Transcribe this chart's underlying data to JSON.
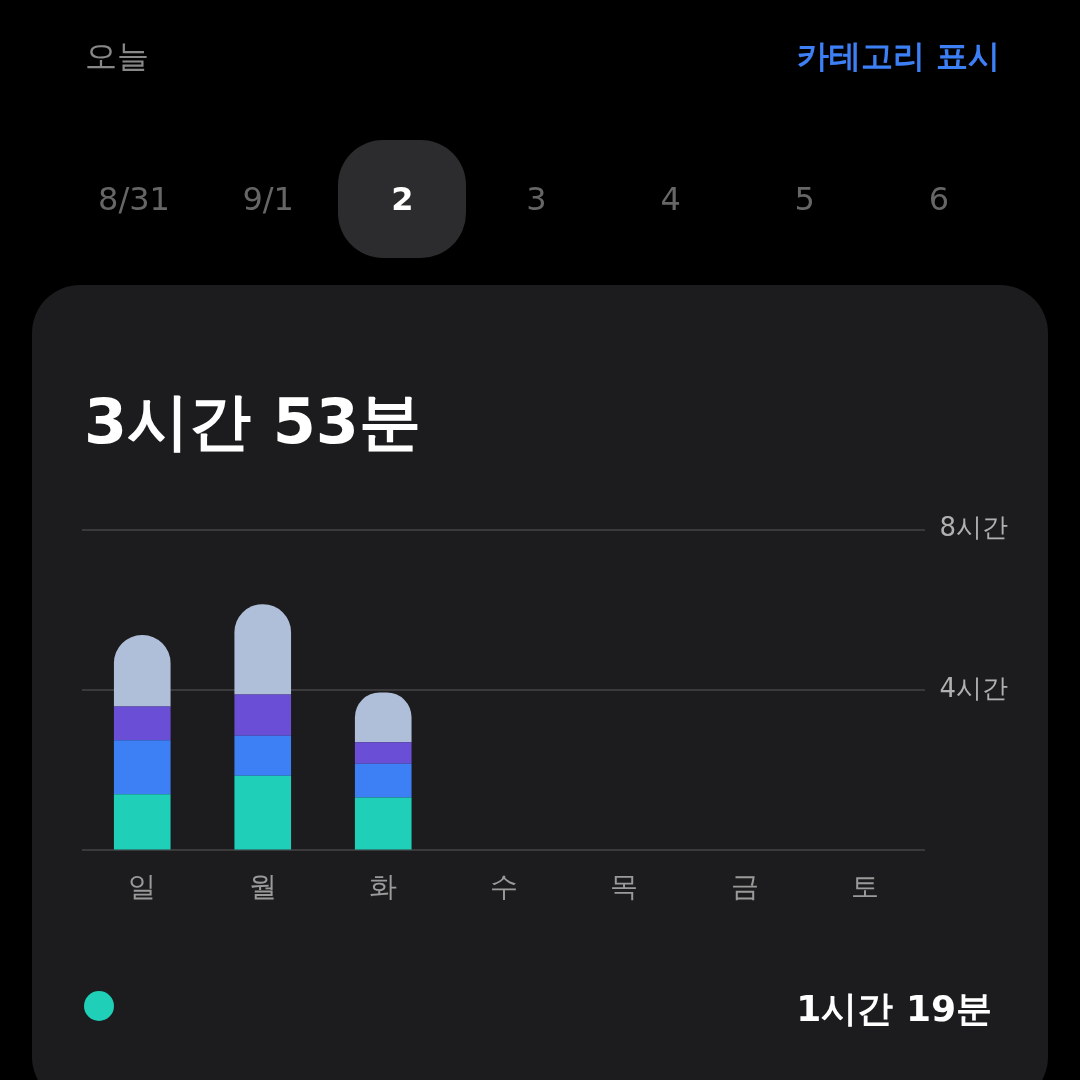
{
  "chart_data": {
    "type": "bar",
    "stacked": true,
    "title": "3시간 53분",
    "categories": [
      "일",
      "월",
      "화",
      "수",
      "목",
      "금",
      "토"
    ],
    "series": [
      {
        "color": "#1fcfb8",
        "values": [
          1.4,
          1.86,
          1.32,
          null,
          null,
          null,
          null
        ]
      },
      {
        "color": "#3d7ff5",
        "values": [
          1.35,
          1.0,
          0.84,
          null,
          null,
          null,
          null
        ]
      },
      {
        "color": "#6a4fd6",
        "values": [
          0.84,
          1.03,
          0.54,
          null,
          null,
          null,
          null
        ]
      },
      {
        "color": "#b0bfd9",
        "values": [
          1.78,
          2.25,
          1.24,
          null,
          null,
          null,
          null
        ]
      }
    ],
    "ylim": [
      0,
      8
    ],
    "yticks": [
      {
        "value": 0,
        "label": null
      },
      {
        "value": 4,
        "label": "4시간"
      },
      {
        "value": 8,
        "label": "8시간"
      }
    ],
    "grid": "y",
    "legend": false,
    "annotations": [
      "오늘",
      "카테고리 표시",
      "8/31",
      "9/1",
      "2",
      "3",
      "4",
      "5",
      "6",
      "1시간 19분"
    ]
  }
}
